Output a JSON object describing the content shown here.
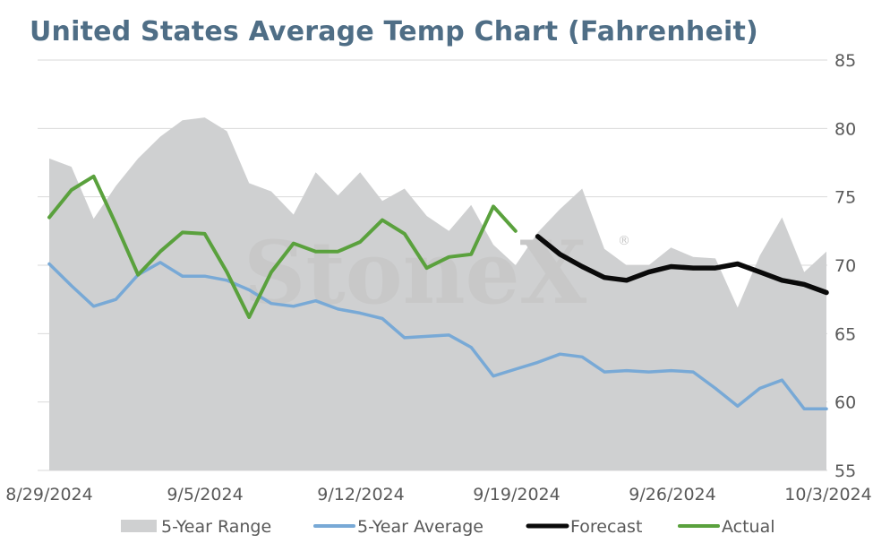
{
  "chart_data": {
    "type": "line",
    "title": "United States Average Temp Chart (Fahrenheit)",
    "watermark": "StoneX",
    "watermark_mark": "®",
    "y_axis_position": "right",
    "ylim": [
      55,
      85
    ],
    "y_ticks": [
      "55",
      "60",
      "65",
      "70",
      "75",
      "80",
      "85"
    ],
    "x_tick_labels": [
      "8/29/2024",
      "9/5/2024",
      "9/12/2024",
      "9/19/2024",
      "9/26/2024",
      "10/3/2024"
    ],
    "x_range_days": [
      0,
      35
    ],
    "grid": "horizontal",
    "legend_position": "bottom",
    "colors": {
      "range_fill": "#cfd0d1",
      "average": "#78a9d6",
      "forecast": "#0a0a0a",
      "actual": "#5aa13d",
      "grid": "#d9d9d9",
      "title": "#4f6e86"
    },
    "range_band": {
      "name": "5-Year Range",
      "x": [
        0,
        1,
        2,
        3,
        4,
        5,
        6,
        7,
        8,
        9,
        10,
        11,
        12,
        13,
        14,
        15,
        16,
        17,
        18,
        19,
        20,
        21,
        22,
        23,
        24,
        25,
        26,
        27,
        28,
        29,
        30,
        31,
        32,
        33,
        34,
        35
      ],
      "upper": [
        77.8,
        77.2,
        73.4,
        75.8,
        77.8,
        79.4,
        80.6,
        80.8,
        79.8,
        76.0,
        75.4,
        73.7,
        76.8,
        75.1,
        76.8,
        74.7,
        75.6,
        73.6,
        72.5,
        74.4,
        71.5,
        70.0,
        72.4,
        74.1,
        75.6,
        71.2,
        70.0,
        70.0,
        71.3,
        70.6,
        70.5,
        66.9,
        70.7,
        73.5,
        69.5,
        71.0
      ],
      "lower": 55
    },
    "series": [
      {
        "name": "5-Year Average",
        "x": [
          0,
          1,
          2,
          3,
          4,
          5,
          6,
          7,
          8,
          9,
          10,
          11,
          12,
          13,
          14,
          15,
          16,
          17,
          18,
          19,
          20,
          21,
          22,
          23,
          24,
          25,
          26,
          27,
          28,
          29,
          30,
          31,
          32,
          33,
          34,
          35
        ],
        "values": [
          70.1,
          68.5,
          67.0,
          67.5,
          69.3,
          70.2,
          69.2,
          69.2,
          68.9,
          68.2,
          67.2,
          67.0,
          67.4,
          66.8,
          66.5,
          66.1,
          64.7,
          64.8,
          64.9,
          64.0,
          61.9,
          62.4,
          62.9,
          63.5,
          63.3,
          62.2,
          62.3,
          62.2,
          62.3,
          62.2,
          61.0,
          59.7,
          61.0,
          61.6,
          59.5,
          59.5
        ]
      },
      {
        "name": "Forecast",
        "x": [
          22,
          23,
          24,
          25,
          26,
          27,
          28,
          29,
          30,
          31,
          32,
          33,
          34,
          35
        ],
        "values": [
          72.1,
          70.8,
          69.9,
          69.1,
          68.9,
          69.5,
          69.9,
          69.8,
          69.8,
          70.1,
          69.5,
          68.9,
          68.6,
          68.0
        ]
      },
      {
        "name": "Actual",
        "x": [
          0,
          1,
          2,
          3,
          4,
          5,
          6,
          7,
          8,
          9,
          10,
          11,
          12,
          13,
          14,
          15,
          16,
          17,
          18,
          19,
          20,
          21
        ],
        "values": [
          73.5,
          75.5,
          76.5,
          73.0,
          69.3,
          71.0,
          72.4,
          72.3,
          69.5,
          66.2,
          69.5,
          71.6,
          71.0,
          71.0,
          71.7,
          73.3,
          72.3,
          69.8,
          70.6,
          70.8,
          74.3,
          72.5
        ]
      }
    ]
  }
}
